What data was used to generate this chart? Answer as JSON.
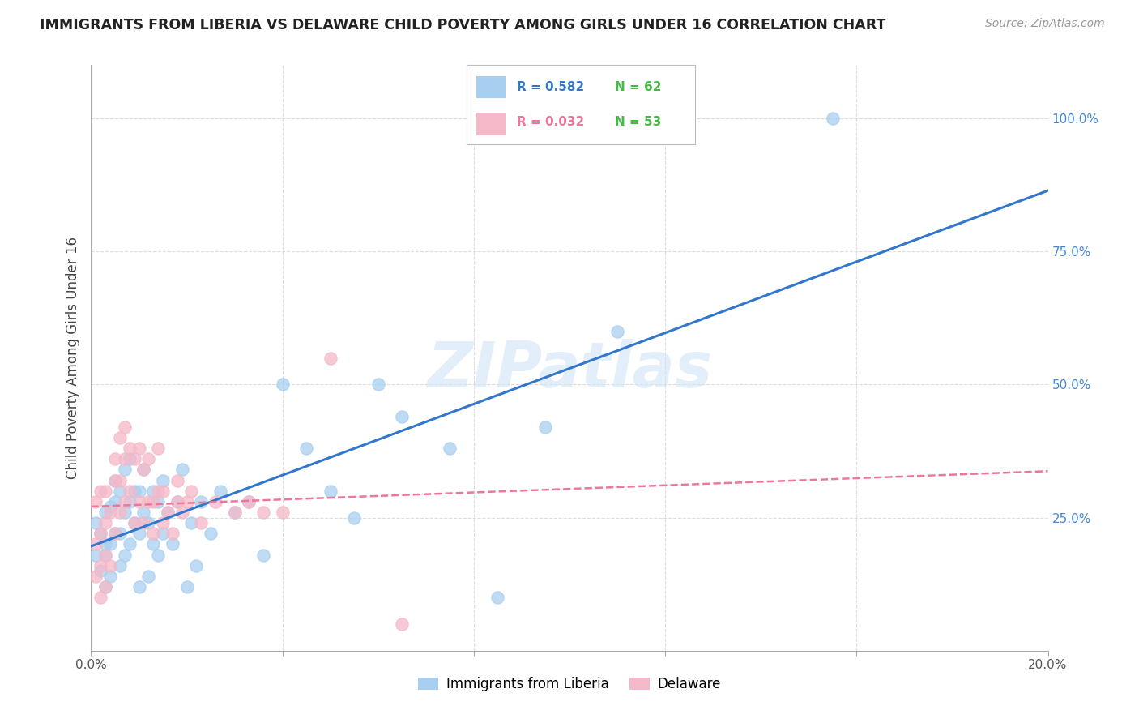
{
  "title": "IMMIGRANTS FROM LIBERIA VS DELAWARE CHILD POVERTY AMONG GIRLS UNDER 16 CORRELATION CHART",
  "source": "Source: ZipAtlas.com",
  "ylabel": "Child Poverty Among Girls Under 16",
  "x_min": 0.0,
  "x_max": 0.2,
  "y_min": 0.0,
  "y_max": 1.1,
  "x_ticks": [
    0.0,
    0.04,
    0.08,
    0.12,
    0.16,
    0.2
  ],
  "x_tick_labels": [
    "0.0%",
    "",
    "",
    "",
    "",
    "20.0%"
  ],
  "y_ticks_right": [
    0.25,
    0.5,
    0.75,
    1.0
  ],
  "y_tick_labels_right": [
    "25.0%",
    "50.0%",
    "75.0%",
    "100.0%"
  ],
  "legend_labels": [
    "Immigrants from Liberia",
    "Delaware"
  ],
  "legend_r_blue": "R = 0.582",
  "legend_n_blue": "N = 62",
  "legend_r_pink": "R = 0.032",
  "legend_n_pink": "N = 53",
  "color_blue": "#a8cff0",
  "color_pink": "#f5b8c8",
  "color_blue_line": "#3377cc",
  "color_pink_line": "#ee7799",
  "watermark": "ZIPatlas",
  "blue_points_x": [
    0.001,
    0.001,
    0.002,
    0.002,
    0.003,
    0.003,
    0.003,
    0.003,
    0.004,
    0.004,
    0.004,
    0.005,
    0.005,
    0.005,
    0.006,
    0.006,
    0.006,
    0.007,
    0.007,
    0.007,
    0.008,
    0.008,
    0.008,
    0.009,
    0.009,
    0.01,
    0.01,
    0.01,
    0.011,
    0.011,
    0.012,
    0.012,
    0.013,
    0.013,
    0.014,
    0.014,
    0.015,
    0.015,
    0.016,
    0.017,
    0.018,
    0.019,
    0.02,
    0.021,
    0.022,
    0.023,
    0.025,
    0.027,
    0.03,
    0.033,
    0.036,
    0.04,
    0.045,
    0.05,
    0.055,
    0.06,
    0.065,
    0.075,
    0.085,
    0.095,
    0.11,
    0.155
  ],
  "blue_points_y": [
    0.18,
    0.24,
    0.15,
    0.22,
    0.12,
    0.18,
    0.2,
    0.26,
    0.14,
    0.2,
    0.27,
    0.22,
    0.28,
    0.32,
    0.16,
    0.22,
    0.3,
    0.18,
    0.26,
    0.34,
    0.2,
    0.28,
    0.36,
    0.24,
    0.3,
    0.12,
    0.22,
    0.3,
    0.26,
    0.34,
    0.14,
    0.24,
    0.2,
    0.3,
    0.18,
    0.28,
    0.22,
    0.32,
    0.26,
    0.2,
    0.28,
    0.34,
    0.12,
    0.24,
    0.16,
    0.28,
    0.22,
    0.3,
    0.26,
    0.28,
    0.18,
    0.5,
    0.38,
    0.3,
    0.25,
    0.5,
    0.44,
    0.38,
    0.1,
    0.42,
    0.6,
    1.0
  ],
  "pink_points_x": [
    0.001,
    0.001,
    0.001,
    0.002,
    0.002,
    0.002,
    0.002,
    0.003,
    0.003,
    0.003,
    0.003,
    0.004,
    0.004,
    0.005,
    0.005,
    0.005,
    0.006,
    0.006,
    0.006,
    0.007,
    0.007,
    0.007,
    0.008,
    0.008,
    0.009,
    0.009,
    0.01,
    0.01,
    0.011,
    0.011,
    0.012,
    0.012,
    0.013,
    0.013,
    0.014,
    0.014,
    0.015,
    0.015,
    0.016,
    0.017,
    0.018,
    0.018,
    0.019,
    0.02,
    0.021,
    0.023,
    0.026,
    0.03,
    0.033,
    0.036,
    0.04,
    0.05,
    0.065
  ],
  "pink_points_y": [
    0.14,
    0.2,
    0.28,
    0.1,
    0.16,
    0.22,
    0.3,
    0.12,
    0.18,
    0.24,
    0.3,
    0.16,
    0.26,
    0.22,
    0.32,
    0.36,
    0.26,
    0.32,
    0.4,
    0.28,
    0.36,
    0.42,
    0.3,
    0.38,
    0.24,
    0.36,
    0.28,
    0.38,
    0.24,
    0.34,
    0.28,
    0.36,
    0.22,
    0.28,
    0.3,
    0.38,
    0.24,
    0.3,
    0.26,
    0.22,
    0.28,
    0.32,
    0.26,
    0.28,
    0.3,
    0.24,
    0.28,
    0.26,
    0.28,
    0.26,
    0.26,
    0.55,
    0.05
  ]
}
